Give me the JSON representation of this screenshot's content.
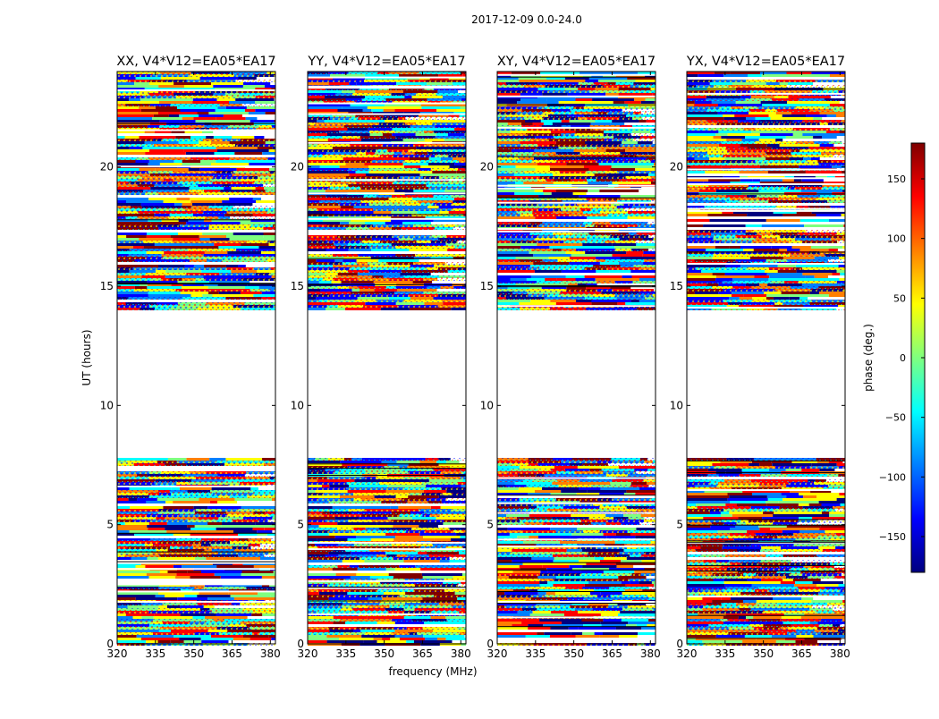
{
  "chart_data": {
    "type": "heatmap",
    "title": "2017-12-09 0.0-24.0",
    "xlabel": "frequency (MHz)",
    "ylabel": "UT (hours)",
    "xlim": [
      320,
      382
    ],
    "ylim": [
      0,
      24
    ],
    "x_ticks": [
      320,
      335,
      350,
      365,
      380
    ],
    "y_ticks": [
      0,
      5,
      10,
      15,
      20
    ],
    "colorbar": {
      "label": "phase (deg.)",
      "range": [
        -180,
        180
      ],
      "ticks": [
        150,
        100,
        50,
        0,
        -50,
        -100,
        -150
      ],
      "tick_labels": [
        "150",
        "100",
        "50",
        "0",
        "−50",
        "−100",
        "−150"
      ],
      "colormap": "jet",
      "colors": [
        "#00007f",
        "#0000ff",
        "#007fff",
        "#00ffff",
        "#7fff7f",
        "#ffff00",
        "#ff7f00",
        "#ff0000",
        "#7f0000"
      ]
    },
    "data_gaps_hours": [
      [
        7.8,
        14.1
      ]
    ],
    "panels": [
      {
        "title": "XX, V4*V12=EA05*EA17",
        "polarization": "XX"
      },
      {
        "title": "YY, V4*V12=EA05*EA17",
        "polarization": "YY"
      },
      {
        "title": "XY, V4*V12=EA05*EA17",
        "polarization": "XY"
      },
      {
        "title": "YX, V4*V12=EA05*EA17",
        "polarization": "YX"
      }
    ]
  }
}
